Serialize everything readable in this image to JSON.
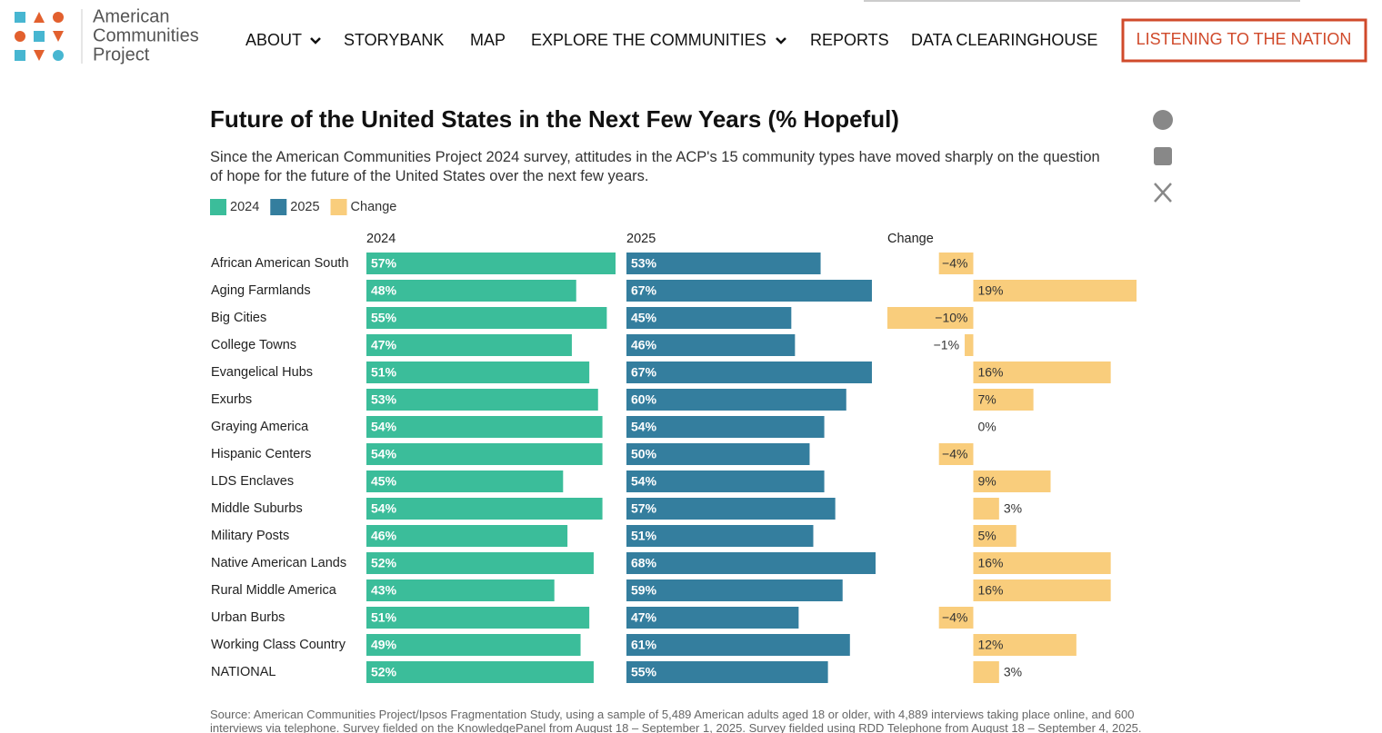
{
  "header": {
    "logo_lines": [
      "American",
      "Communities",
      "Project"
    ],
    "nav": [
      "ABOUT",
      "STORYBANK",
      "MAP",
      "EXPLORE THE COMMUNITIES",
      "REPORTS",
      "DATA CLEARINGHOUSE"
    ],
    "cta": "LISTENING TO THE NATION"
  },
  "chart_data": {
    "type": "bar",
    "title": "Future of the United States in the Next Few Years (% Hopeful)",
    "subtitle": "Since the American Communities Project 2024 survey, attitudes in the ACP's 15 community types have moved sharply on the question of hope for the future of the United States over the next few years.",
    "categories": [
      "African American South",
      "Aging Farmlands",
      "Big Cities",
      "College Towns",
      "Evangelical Hubs",
      "Exurbs",
      "Graying America",
      "Hispanic Centers",
      "LDS Enclaves",
      "Middle Suburbs",
      "Military Posts",
      "Native American Lands",
      "Rural Middle America",
      "Urban Burbs",
      "Working Class Country",
      "NATIONAL"
    ],
    "series": [
      {
        "name": "2024",
        "color": "#3bbd9a",
        "xlim": [
          0,
          57
        ],
        "values": [
          57,
          48,
          55,
          47,
          51,
          53,
          54,
          54,
          45,
          54,
          46,
          52,
          43,
          51,
          49,
          52
        ],
        "value_labels": [
          "57%",
          "48%",
          "55%",
          "47%",
          "51%",
          "53%",
          "54%",
          "54%",
          "45%",
          "54%",
          "46%",
          "52%",
          "43%",
          "51%",
          "49%",
          "52%"
        ]
      },
      {
        "name": "2025",
        "color": "#347e9e",
        "xlim": [
          0,
          68
        ],
        "values": [
          53,
          67,
          45,
          46,
          67,
          60,
          54,
          50,
          54,
          57,
          51,
          68,
          59,
          47,
          61,
          55
        ],
        "value_labels": [
          "53%",
          "67%",
          "45%",
          "46%",
          "67%",
          "60%",
          "54%",
          "50%",
          "54%",
          "57%",
          "51%",
          "68%",
          "59%",
          "47%",
          "61%",
          "55%"
        ]
      },
      {
        "name": "Change",
        "color": "#f9cd7c",
        "xlim": [
          -10,
          19
        ],
        "values": [
          -4,
          19,
          -10,
          -1,
          16,
          7,
          0,
          -4,
          9,
          3,
          5,
          16,
          16,
          -4,
          12,
          3
        ],
        "value_labels": [
          "−4%",
          "19%",
          "−10%",
          "−1%",
          "16%",
          "7%",
          "0%",
          "−4%",
          "9%",
          "3%",
          "5%",
          "16%",
          "16%",
          "−4%",
          "12%",
          "3%"
        ]
      }
    ]
  },
  "source": "Source: American Communities Project/Ipsos Fragmentation Study, using a sample of 5,489 American adults aged 18 or older, with 4,889 interviews taking place online, and 600 interviews via telephone. Survey fielded on the KnowledgePanel from August 18 – September 1, 2025. Survey fielded using RDD Telephone from August 18 – September 4, 2025."
}
